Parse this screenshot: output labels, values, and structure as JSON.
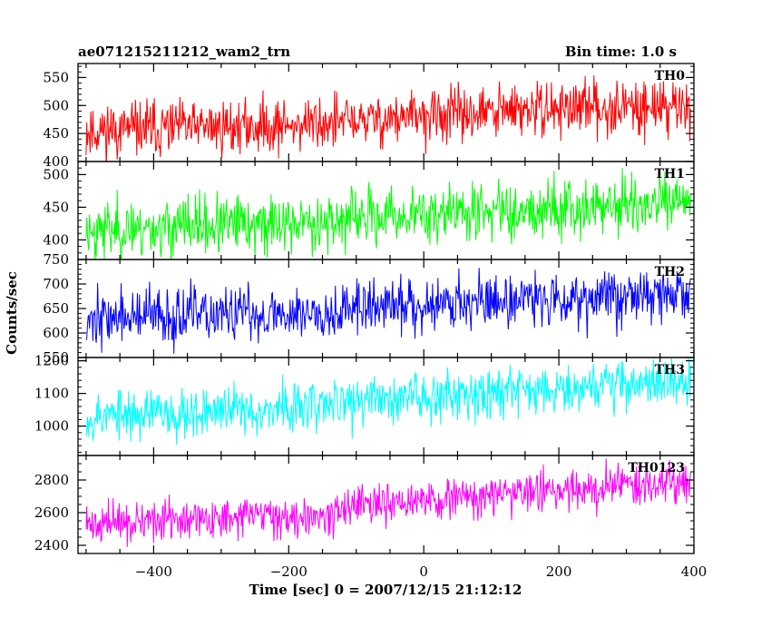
{
  "header": {
    "title": "ae071215211212_wam2_trn",
    "bin_time": "Bin time: 1.0 s"
  },
  "chart_data": {
    "type": "line",
    "title": "ae071215211212_wam2_trn",
    "xlabel": "Time [sec] 0 = 2007/12/15 21:12:12",
    "ylabel": "Counts/sec",
    "xlim": [
      -512,
      400
    ],
    "x_ticks": [
      -400,
      -200,
      0,
      200,
      400
    ],
    "x_tick_labels": [
      "−400",
      "−200",
      "0",
      "200",
      "400"
    ],
    "grid": false,
    "panels": [
      {
        "name": "TH0",
        "color": "#ff0000",
        "ylim": [
          400,
          575
        ],
        "y_ticks": [
          400,
          450,
          500,
          550
        ],
        "y_tick_labels": [
          "400",
          "450",
          "500",
          "550"
        ],
        "trend": [
          {
            "x": -500,
            "y": 455
          },
          {
            "x": -200,
            "y": 465
          },
          {
            "x": 0,
            "y": 480
          },
          {
            "x": 200,
            "y": 495
          },
          {
            "x": 395,
            "y": 500
          }
        ],
        "noise": 24,
        "seed": 11
      },
      {
        "name": "TH1",
        "color": "#00ff00",
        "ylim": [
          370,
          520
        ],
        "y_ticks": [
          400,
          450,
          500
        ],
        "y_tick_labels": [
          "400",
          "450",
          "500"
        ],
        "trend": [
          {
            "x": -500,
            "y": 415
          },
          {
            "x": -200,
            "y": 425
          },
          {
            "x": 0,
            "y": 440
          },
          {
            "x": 200,
            "y": 450
          },
          {
            "x": 395,
            "y": 455
          }
        ],
        "noise": 22,
        "seed": 23
      },
      {
        "name": "TH2",
        "color": "#0000ff",
        "ylim": [
          550,
          750
        ],
        "y_ticks": [
          550,
          600,
          650,
          700,
          750
        ],
        "y_tick_labels": [
          "550",
          "600",
          "650",
          "700",
          "750"
        ],
        "trend": [
          {
            "x": -500,
            "y": 630
          },
          {
            "x": -200,
            "y": 640
          },
          {
            "x": 0,
            "y": 660
          },
          {
            "x": 200,
            "y": 672
          },
          {
            "x": 395,
            "y": 680
          }
        ],
        "noise": 28,
        "seed": 37
      },
      {
        "name": "TH3",
        "color": "#00ffff",
        "ylim": [
          910,
          1210
        ],
        "y_ticks": [
          1000,
          1100,
          1200
        ],
        "y_tick_labels": [
          "1000",
          "1100",
          "1200"
        ],
        "trend": [
          {
            "x": -500,
            "y": 1030
          },
          {
            "x": -200,
            "y": 1055
          },
          {
            "x": 0,
            "y": 1095
          },
          {
            "x": 200,
            "y": 1120
          },
          {
            "x": 395,
            "y": 1140
          }
        ],
        "noise": 38,
        "seed": 53
      },
      {
        "name": "TH0123",
        "color": "#ff00ff",
        "ylim": [
          2350,
          2950
        ],
        "y_ticks": [
          2400,
          2600,
          2800
        ],
        "y_tick_labels": [
          "2400",
          "2600",
          "2800"
        ],
        "trend": [
          {
            "x": -500,
            "y": 2530
          },
          {
            "x": -200,
            "y": 2580
          },
          {
            "x": 0,
            "y": 2670
          },
          {
            "x": 200,
            "y": 2740
          },
          {
            "x": 395,
            "y": 2800
          }
        ],
        "noise": 60,
        "seed": 71
      }
    ]
  }
}
